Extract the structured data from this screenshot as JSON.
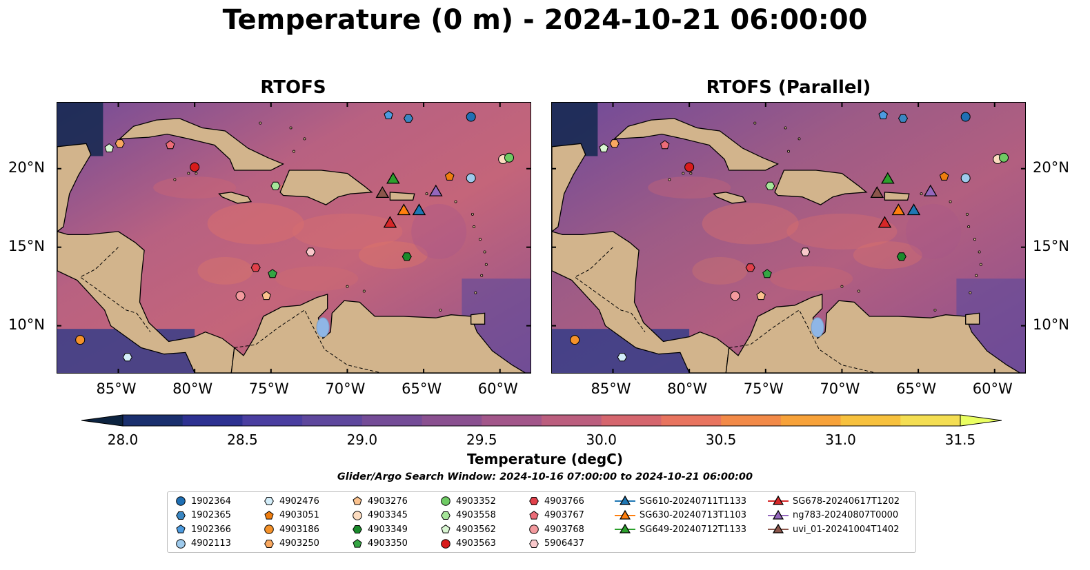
{
  "title": "Temperature (0 m) - 2024-10-21 06:00:00",
  "panels": [
    {
      "subtitle": "RTOFS"
    },
    {
      "subtitle": "RTOFS (Parallel)"
    }
  ],
  "axes": {
    "lon_ticks": [
      "85°W",
      "80°W",
      "75°W",
      "70°W",
      "65°W",
      "60°W"
    ],
    "lat_ticks": [
      "20°N",
      "15°N",
      "10°N"
    ]
  },
  "colorbar": {
    "label": "Temperature (degC)",
    "ticks": [
      "28.0",
      "28.5",
      "29.0",
      "29.5",
      "30.0",
      "30.5",
      "31.0",
      "31.5"
    ],
    "colors": [
      "#0c2340",
      "#1a2f6e",
      "#2d3191",
      "#4a3ea0",
      "#5e479d",
      "#744c97",
      "#8a5090",
      "#a2568a",
      "#bb5e7e",
      "#d5666e",
      "#e8745f",
      "#f28a48",
      "#f7a23a",
      "#f7c13e",
      "#f4de53",
      "#eaff62"
    ]
  },
  "search_window": "Glider/Argo Search Window: 2024-10-16 07:00:00 to 2024-10-21 06:00:00",
  "legend": [
    {
      "label": "1902364",
      "shape": "circle",
      "color": "#1f6fb4"
    },
    {
      "label": "1902365",
      "shape": "hexagon",
      "color": "#3a86c2"
    },
    {
      "label": "1902366",
      "shape": "pentagon",
      "color": "#4c9be0"
    },
    {
      "label": "4902113",
      "shape": "circle",
      "color": "#9ecaec"
    },
    {
      "label": "4902476",
      "shape": "hexagon",
      "color": "#d4eefa"
    },
    {
      "label": "4903051",
      "shape": "pentagon",
      "color": "#ef7d0f"
    },
    {
      "label": "4903186",
      "shape": "circle",
      "color": "#f5922a"
    },
    {
      "label": "4903250",
      "shape": "hexagon",
      "color": "#f9a860"
    },
    {
      "label": "4903276",
      "shape": "pentagon",
      "color": "#fbc28e"
    },
    {
      "label": "4903345",
      "shape": "circle",
      "color": "#fcdcc0"
    },
    {
      "label": "4903349",
      "shape": "hexagon",
      "color": "#1b8a2c"
    },
    {
      "label": "4903350",
      "shape": "pentagon",
      "color": "#35a543"
    },
    {
      "label": "4903352",
      "shape": "circle",
      "color": "#6fcb64"
    },
    {
      "label": "4903558",
      "shape": "hexagon",
      "color": "#a6e59a"
    },
    {
      "label": "4903562",
      "shape": "pentagon",
      "color": "#d9f6d2"
    },
    {
      "label": "4903563",
      "shape": "circle",
      "color": "#d81b1b"
    },
    {
      "label": "4903766",
      "shape": "hexagon",
      "color": "#e0404a"
    },
    {
      "label": "4903767",
      "shape": "pentagon",
      "color": "#ec6c78"
    },
    {
      "label": "4903768",
      "shape": "circle",
      "color": "#f39a9e"
    },
    {
      "label": "5906437",
      "shape": "hexagon",
      "color": "#f9c8cb"
    },
    {
      "label": "SG610-20240711T1133",
      "shape": "triangle",
      "color": "#1f77b4"
    },
    {
      "label": "SG630-20240713T1103",
      "shape": "triangle",
      "color": "#ff7f0e"
    },
    {
      "label": "SG649-20240712T1133",
      "shape": "triangle",
      "color": "#2ca02c"
    },
    {
      "label": "SG678-20240617T1202",
      "shape": "triangle",
      "color": "#d62728"
    },
    {
      "label": "ng783-20240807T0000",
      "shape": "triangle",
      "color": "#9467bd"
    },
    {
      "label": "uvi_01-20241004T1402",
      "shape": "triangle",
      "color": "#8c564b"
    }
  ],
  "markers": [
    {
      "id": "1902364",
      "lon": -61.9,
      "lat": 23.3
    },
    {
      "id": "1902365",
      "lon": -66.0,
      "lat": 23.2
    },
    {
      "id": "1902366",
      "lon": -67.3,
      "lat": 23.4
    },
    {
      "id": "4902113",
      "lon": -61.9,
      "lat": 19.4
    },
    {
      "id": "4902476",
      "lon": -84.4,
      "lat": 8.0
    },
    {
      "id": "4903051",
      "lon": -63.3,
      "lat": 19.5
    },
    {
      "id": "4903186",
      "lon": -87.5,
      "lat": 9.1
    },
    {
      "id": "4903250",
      "lon": -84.9,
      "lat": 21.6
    },
    {
      "id": "4903276",
      "lon": -75.3,
      "lat": 11.9
    },
    {
      "id": "4903345",
      "lon": -59.8,
      "lat": 20.6
    },
    {
      "id": "4903349",
      "lon": -66.1,
      "lat": 14.4
    },
    {
      "id": "4903350",
      "lon": -74.9,
      "lat": 13.3
    },
    {
      "id": "4903352",
      "lon": -59.4,
      "lat": 20.7
    },
    {
      "id": "4903558",
      "lon": -74.7,
      "lat": 18.9
    },
    {
      "id": "4903562",
      "lon": -85.6,
      "lat": 21.3
    },
    {
      "id": "4903563",
      "lon": -80.0,
      "lat": 20.1
    },
    {
      "id": "4903766",
      "lon": -76.0,
      "lat": 13.7
    },
    {
      "id": "4903767",
      "lon": -81.6,
      "lat": 21.5
    },
    {
      "id": "4903768",
      "lon": -77.0,
      "lat": 11.9
    },
    {
      "id": "5906437",
      "lon": -72.4,
      "lat": 14.7
    },
    {
      "id": "SG610-20240711T1133",
      "lon": -65.3,
      "lat": 17.4
    },
    {
      "id": "SG630-20240713T1103",
      "lon": -66.3,
      "lat": 17.4
    },
    {
      "id": "SG649-20240712T1133",
      "lon": -67.0,
      "lat": 19.4
    },
    {
      "id": "SG678-20240617T1202",
      "lon": -67.2,
      "lat": 16.6
    },
    {
      "id": "ng783-20240807T0000",
      "lon": -64.2,
      "lat": 18.6
    },
    {
      "id": "uvi_01-20241004T1402",
      "lon": -67.7,
      "lat": 18.5
    }
  ]
}
